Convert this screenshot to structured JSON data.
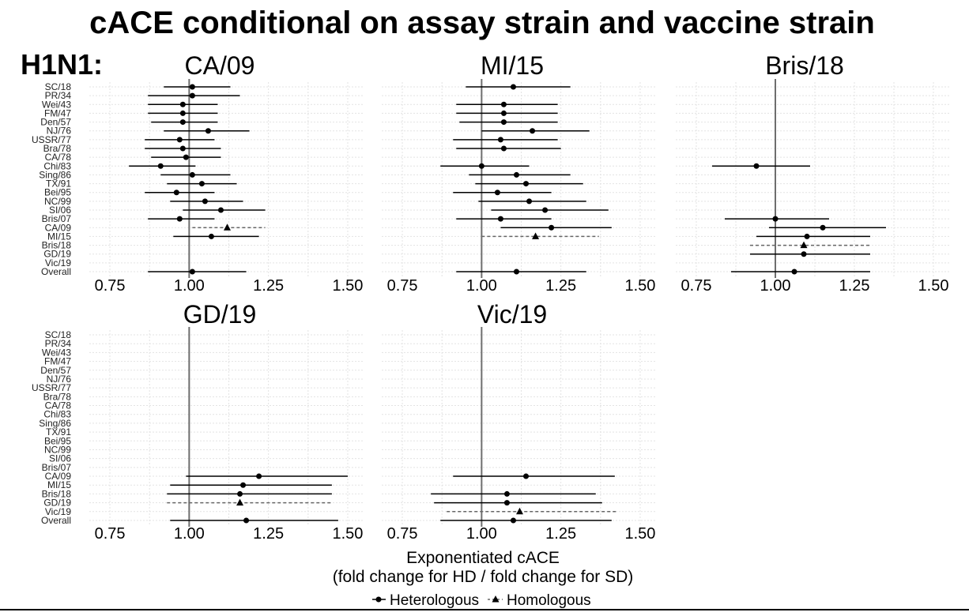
{
  "header": {
    "title": "cACE conditional on assay strain and vaccine strain",
    "subtype_label": "H1N1:"
  },
  "axes": {
    "xlabel_line1": "Exponentiated cACE",
    "xlabel_line2": "(fold change for HD / fold change for SD)",
    "ticks": [
      "0.75",
      "1.00",
      "1.25",
      "1.50"
    ],
    "tick_values": [
      0.75,
      1.0,
      1.25,
      1.5
    ],
    "reference_line": 1.0
  },
  "legend": {
    "heterologous": "Heterologous",
    "homologous": "Homologous"
  },
  "colors": {
    "ink": "#000000",
    "reference_line": "#6e6e6e",
    "grid": "#e3e3e3",
    "homologous_dash": "#666666"
  },
  "chart_data": {
    "type": "forest",
    "xlim": [
      0.75,
      1.5
    ],
    "grid": true,
    "categories": [
      "SC/18",
      "PR/34",
      "Wei/43",
      "FM/47",
      "Den/57",
      "NJ/76",
      "USSR/77",
      "Bra/78",
      "CA/78",
      "Chi/83",
      "Sing/86",
      "TX/91",
      "Bei/95",
      "NC/99",
      "SI/06",
      "Bris/07",
      "CA/09",
      "MI/15",
      "Bris/18",
      "GD/19",
      "Vic/19",
      "Overall"
    ],
    "panels": [
      {
        "title": "CA/09",
        "points": [
          {
            "cat": "SC/18",
            "est": 1.01,
            "lo": 0.92,
            "hi": 1.13,
            "kind": "heterologous"
          },
          {
            "cat": "PR/34",
            "est": 1.01,
            "lo": 0.87,
            "hi": 1.16,
            "kind": "heterologous"
          },
          {
            "cat": "Wei/43",
            "est": 0.98,
            "lo": 0.87,
            "hi": 1.09,
            "kind": "heterologous"
          },
          {
            "cat": "FM/47",
            "est": 0.98,
            "lo": 0.87,
            "hi": 1.09,
            "kind": "heterologous"
          },
          {
            "cat": "Den/57",
            "est": 0.98,
            "lo": 0.88,
            "hi": 1.09,
            "kind": "heterologous"
          },
          {
            "cat": "NJ/76",
            "est": 1.06,
            "lo": 0.92,
            "hi": 1.19,
            "kind": "heterologous"
          },
          {
            "cat": "USSR/77",
            "est": 0.97,
            "lo": 0.86,
            "hi": 1.08,
            "kind": "heterologous"
          },
          {
            "cat": "Bra/78",
            "est": 0.98,
            "lo": 0.86,
            "hi": 1.1,
            "kind": "heterologous"
          },
          {
            "cat": "CA/78",
            "est": 0.99,
            "lo": 0.88,
            "hi": 1.1,
            "kind": "heterologous"
          },
          {
            "cat": "Chi/83",
            "est": 0.91,
            "lo": 0.81,
            "hi": 1.02,
            "kind": "heterologous"
          },
          {
            "cat": "Sing/86",
            "est": 1.01,
            "lo": 0.91,
            "hi": 1.13,
            "kind": "heterologous"
          },
          {
            "cat": "TX/91",
            "est": 1.04,
            "lo": 0.93,
            "hi": 1.15,
            "kind": "heterologous"
          },
          {
            "cat": "Bei/95",
            "est": 0.96,
            "lo": 0.86,
            "hi": 1.08,
            "kind": "heterologous"
          },
          {
            "cat": "NC/99",
            "est": 1.05,
            "lo": 0.94,
            "hi": 1.17,
            "kind": "heterologous"
          },
          {
            "cat": "SI/06",
            "est": 1.1,
            "lo": 0.98,
            "hi": 1.24,
            "kind": "heterologous"
          },
          {
            "cat": "Bris/07",
            "est": 0.97,
            "lo": 0.87,
            "hi": 1.08,
            "kind": "heterologous"
          },
          {
            "cat": "CA/09",
            "est": 1.12,
            "lo": 1.01,
            "hi": 1.24,
            "kind": "homologous"
          },
          {
            "cat": "MI/15",
            "est": 1.07,
            "lo": 0.95,
            "hi": 1.22,
            "kind": "heterologous"
          },
          {
            "cat": "Overall",
            "est": 1.01,
            "lo": 0.87,
            "hi": 1.18,
            "kind": "heterologous"
          }
        ]
      },
      {
        "title": "MI/15",
        "points": [
          {
            "cat": "SC/18",
            "est": 1.1,
            "lo": 0.95,
            "hi": 1.28,
            "kind": "heterologous"
          },
          {
            "cat": "Wei/43",
            "est": 1.07,
            "lo": 0.92,
            "hi": 1.24,
            "kind": "heterologous"
          },
          {
            "cat": "FM/47",
            "est": 1.07,
            "lo": 0.92,
            "hi": 1.24,
            "kind": "heterologous"
          },
          {
            "cat": "Den/57",
            "est": 1.07,
            "lo": 0.93,
            "hi": 1.24,
            "kind": "heterologous"
          },
          {
            "cat": "NJ/76",
            "est": 1.16,
            "lo": 1.0,
            "hi": 1.34,
            "kind": "heterologous"
          },
          {
            "cat": "USSR/77",
            "est": 1.06,
            "lo": 0.91,
            "hi": 1.24,
            "kind": "heterologous"
          },
          {
            "cat": "Bra/78",
            "est": 1.07,
            "lo": 0.92,
            "hi": 1.25,
            "kind": "heterologous"
          },
          {
            "cat": "Chi/83",
            "est": 1.0,
            "lo": 0.87,
            "hi": 1.15,
            "kind": "heterologous"
          },
          {
            "cat": "Sing/86",
            "est": 1.11,
            "lo": 0.96,
            "hi": 1.28,
            "kind": "heterologous"
          },
          {
            "cat": "TX/91",
            "est": 1.14,
            "lo": 0.98,
            "hi": 1.32,
            "kind": "heterologous"
          },
          {
            "cat": "Bei/95",
            "est": 1.05,
            "lo": 0.91,
            "hi": 1.22,
            "kind": "heterologous"
          },
          {
            "cat": "NC/99",
            "est": 1.15,
            "lo": 0.99,
            "hi": 1.33,
            "kind": "heterologous"
          },
          {
            "cat": "SI/06",
            "est": 1.2,
            "lo": 1.03,
            "hi": 1.4,
            "kind": "heterologous"
          },
          {
            "cat": "Bris/07",
            "est": 1.06,
            "lo": 0.92,
            "hi": 1.22,
            "kind": "heterologous"
          },
          {
            "cat": "CA/09",
            "est": 1.22,
            "lo": 1.06,
            "hi": 1.41,
            "kind": "heterologous"
          },
          {
            "cat": "MI/15",
            "est": 1.17,
            "lo": 1.0,
            "hi": 1.37,
            "kind": "homologous"
          },
          {
            "cat": "Overall",
            "est": 1.11,
            "lo": 0.92,
            "hi": 1.33,
            "kind": "heterologous"
          }
        ]
      },
      {
        "title": "Bris/18",
        "points": [
          {
            "cat": "Chi/83",
            "est": 0.94,
            "lo": 0.8,
            "hi": 1.11,
            "kind": "heterologous"
          },
          {
            "cat": "Bris/07",
            "est": 1.0,
            "lo": 0.84,
            "hi": 1.17,
            "kind": "heterologous"
          },
          {
            "cat": "CA/09",
            "est": 1.15,
            "lo": 0.98,
            "hi": 1.35,
            "kind": "heterologous"
          },
          {
            "cat": "MI/15",
            "est": 1.1,
            "lo": 0.94,
            "hi": 1.3,
            "kind": "heterologous"
          },
          {
            "cat": "Bris/18",
            "est": 1.09,
            "lo": 0.92,
            "hi": 1.3,
            "kind": "homologous"
          },
          {
            "cat": "GD/19",
            "est": 1.09,
            "lo": 0.92,
            "hi": 1.3,
            "kind": "heterologous"
          },
          {
            "cat": "Overall",
            "est": 1.06,
            "lo": 0.86,
            "hi": 1.3,
            "kind": "heterologous"
          }
        ]
      },
      {
        "title": "GD/19",
        "points": [
          {
            "cat": "CA/09",
            "est": 1.22,
            "lo": 0.99,
            "hi": 1.5,
            "kind": "heterologous"
          },
          {
            "cat": "MI/15",
            "est": 1.17,
            "lo": 0.94,
            "hi": 1.45,
            "kind": "heterologous"
          },
          {
            "cat": "Bris/18",
            "est": 1.16,
            "lo": 0.93,
            "hi": 1.45,
            "kind": "heterologous"
          },
          {
            "cat": "GD/19",
            "est": 1.16,
            "lo": 0.93,
            "hi": 1.45,
            "kind": "homologous"
          },
          {
            "cat": "Overall",
            "est": 1.18,
            "lo": 0.94,
            "hi": 1.47,
            "kind": "heterologous"
          }
        ]
      },
      {
        "title": "Vic/19",
        "points": [
          {
            "cat": "CA/09",
            "est": 1.14,
            "lo": 0.91,
            "hi": 1.42,
            "kind": "heterologous"
          },
          {
            "cat": "Bris/18",
            "est": 1.08,
            "lo": 0.84,
            "hi": 1.36,
            "kind": "heterologous"
          },
          {
            "cat": "GD/19",
            "est": 1.08,
            "lo": 0.85,
            "hi": 1.38,
            "kind": "heterologous"
          },
          {
            "cat": "Vic/19",
            "est": 1.12,
            "lo": 0.89,
            "hi": 1.43,
            "kind": "homologous"
          },
          {
            "cat": "Overall",
            "est": 1.1,
            "lo": 0.87,
            "hi": 1.41,
            "kind": "heterologous"
          }
        ]
      }
    ]
  }
}
